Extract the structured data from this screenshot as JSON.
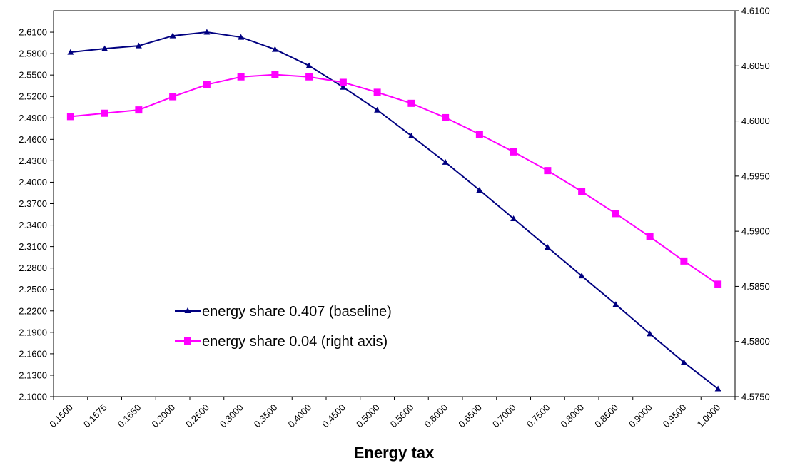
{
  "chart_data": {
    "type": "line",
    "title": "",
    "xlabel": "Energy tax",
    "x": [
      "0.1500",
      "0.1575",
      "0.1650",
      "0.2000",
      "0.2500",
      "0.3000",
      "0.3500",
      "0.4000",
      "0.4500",
      "0.5000",
      "0.5500",
      "0.6000",
      "0.6500",
      "0.7000",
      "0.7500",
      "0.8000",
      "0.8500",
      "0.9000",
      "0.9500",
      "1.0000"
    ],
    "y_left": {
      "range": [
        2.1,
        2.64
      ],
      "ticks": [
        "2.1000",
        "2.1300",
        "2.1600",
        "2.1900",
        "2.2200",
        "2.2500",
        "2.2800",
        "2.3100",
        "2.3400",
        "2.3700",
        "2.4000",
        "2.4300",
        "2.4600",
        "2.4900",
        "2.5200",
        "2.5500",
        "2.5800",
        "2.6100"
      ]
    },
    "y_right": {
      "range": [
        4.575,
        4.61
      ],
      "ticks": [
        "4.5750",
        "4.5800",
        "4.5850",
        "4.5900",
        "4.5950",
        "4.6000",
        "4.6050",
        "4.6100"
      ]
    },
    "series": [
      {
        "name": "energy share 0.407 (baseline)",
        "axis": "left",
        "color": "#000080",
        "marker": "triangle",
        "values": [
          2.582,
          2.587,
          2.591,
          2.605,
          2.61,
          2.603,
          2.586,
          2.563,
          2.533,
          2.501,
          2.465,
          2.428,
          2.389,
          2.349,
          2.309,
          2.269,
          2.229,
          2.188,
          2.148,
          2.111
        ]
      },
      {
        "name": "energy share 0.04 (right axis)",
        "axis": "right",
        "color": "#FF00FF",
        "marker": "square",
        "values": [
          4.6004,
          4.6007,
          4.601,
          4.6022,
          4.6033,
          4.604,
          4.6042,
          4.604,
          4.6035,
          4.6026,
          4.6016,
          4.6003,
          4.5988,
          4.5972,
          4.5955,
          4.5936,
          4.5916,
          4.5895,
          4.5873,
          4.5852
        ]
      }
    ],
    "legend_position": "lower-left inside plot",
    "grid": false
  }
}
